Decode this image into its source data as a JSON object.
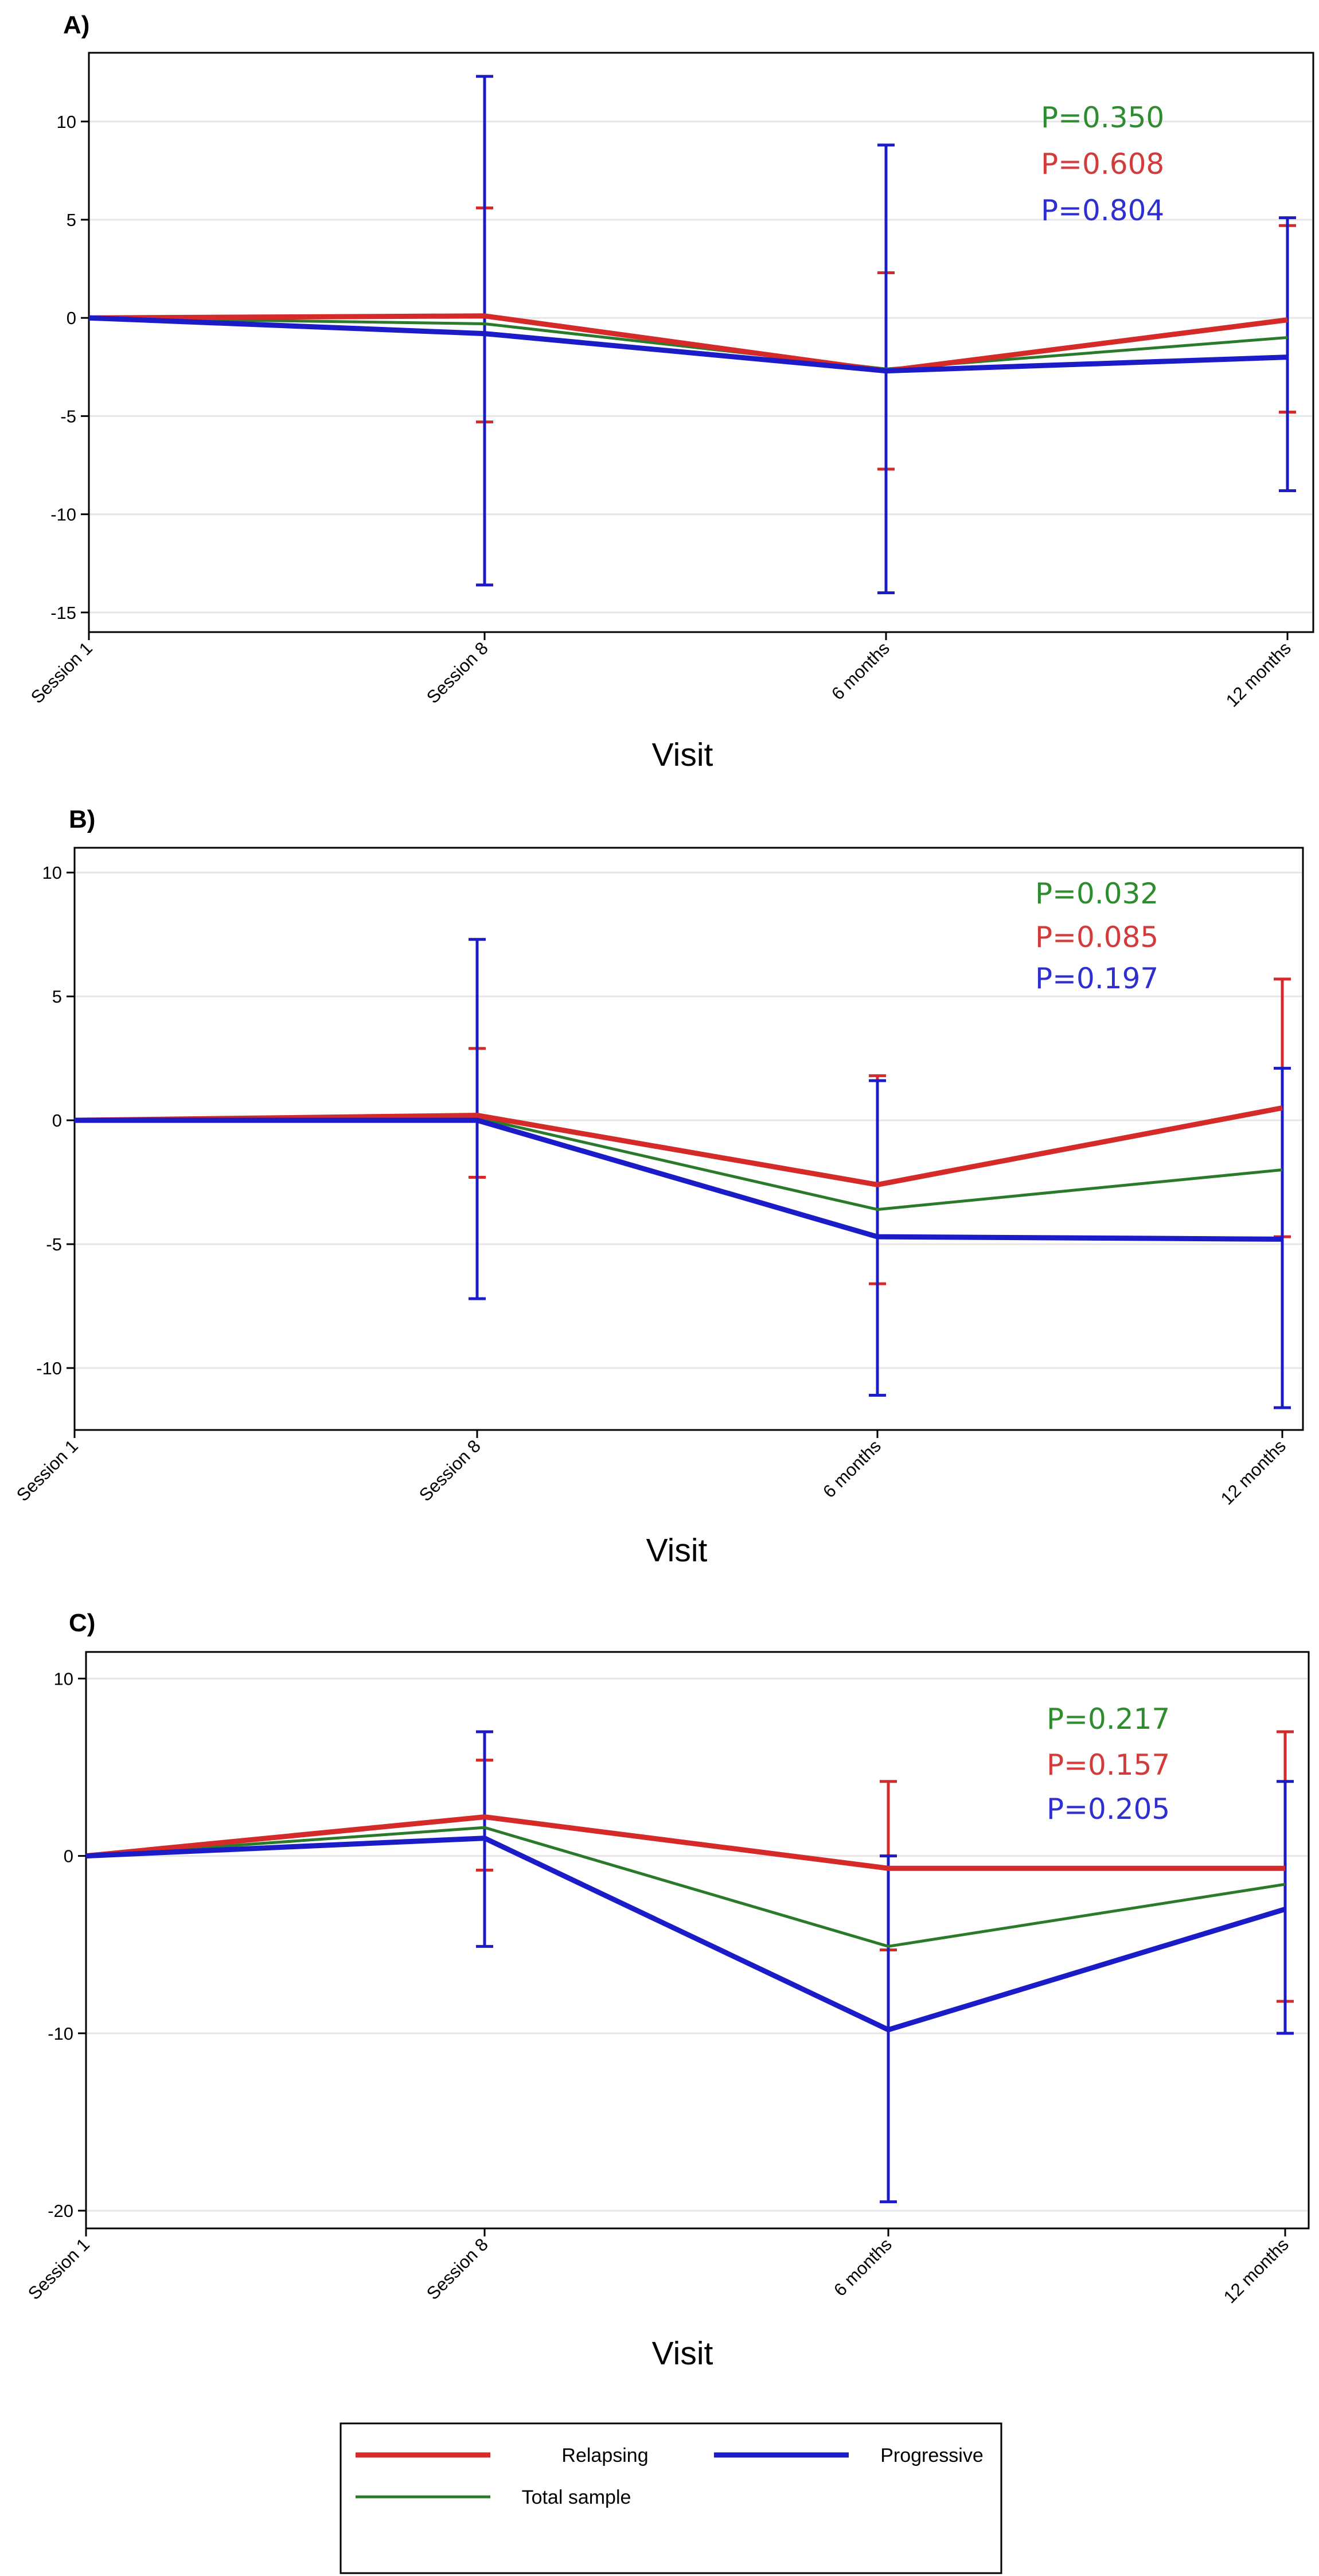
{
  "colors": {
    "relapsing": "#d42a2a",
    "progressive": "#1b1bc8",
    "total": "#2b7a2b",
    "relapsing_text": "#d33b3b",
    "progressive_text": "#2f2fd0",
    "total_text": "#2e8b2e",
    "grid": "#e6e6e6",
    "frame": "#000000"
  },
  "legend": {
    "relapsing": "Relapsing",
    "progressive": "Progressive",
    "total": "Total sample"
  },
  "chart_data": [
    {
      "type": "line",
      "panel_label": "A)",
      "xlabel": "Visit",
      "ylabel": "",
      "categories": [
        "Session 1",
        "Session 8",
        "6 months",
        "12 months"
      ],
      "ylim": [
        -16,
        13.5
      ],
      "yticks": [
        -15,
        -10,
        -5,
        0,
        5,
        10
      ],
      "grid": true,
      "series": [
        {
          "name": "Relapsing",
          "key": "relapsing",
          "values": [
            0,
            0.1,
            -2.7,
            -0.1
          ],
          "err_low": [
            null,
            -5.3,
            -7.7,
            -4.8
          ],
          "err_high": [
            null,
            5.6,
            2.3,
            4.7
          ]
        },
        {
          "name": "Progressive",
          "key": "progressive",
          "values": [
            0,
            -0.8,
            -2.7,
            -2.0
          ],
          "err_low": [
            null,
            -13.6,
            -14.0,
            -8.8
          ],
          "err_high": [
            null,
            12.3,
            8.8,
            5.1
          ]
        },
        {
          "name": "Total sample",
          "key": "total",
          "values": [
            0,
            -0.3,
            -2.6,
            -1.0
          ]
        }
      ],
      "pvalues": [
        {
          "key": "total",
          "text": "P=0.350"
        },
        {
          "key": "relapsing",
          "text": "P=0.608"
        },
        {
          "key": "progressive",
          "text": "P=0.804"
        }
      ]
    },
    {
      "type": "line",
      "panel_label": "B)",
      "xlabel": "Visit",
      "ylabel": "",
      "categories": [
        "Session 1",
        "Session 8",
        "6 months",
        "12 months"
      ],
      "ylim": [
        -12.5,
        11
      ],
      "yticks": [
        -10,
        -5,
        0,
        5,
        10
      ],
      "grid": true,
      "series": [
        {
          "name": "Relapsing",
          "key": "relapsing",
          "values": [
            0,
            0.2,
            -2.6,
            0.5
          ],
          "err_low": [
            null,
            -2.3,
            -6.6,
            -4.7
          ],
          "err_high": [
            null,
            2.9,
            1.8,
            5.7
          ]
        },
        {
          "name": "Progressive",
          "key": "progressive",
          "values": [
            0,
            0,
            -4.7,
            -4.8
          ],
          "err_low": [
            null,
            -7.2,
            -11.1,
            -11.6
          ],
          "err_high": [
            null,
            7.3,
            1.6,
            2.1
          ]
        },
        {
          "name": "Total sample",
          "key": "total",
          "values": [
            0,
            0.1,
            -3.6,
            -2.0
          ]
        }
      ],
      "pvalues": [
        {
          "key": "total",
          "text": "P=0.032"
        },
        {
          "key": "relapsing",
          "text": "P=0.085"
        },
        {
          "key": "progressive",
          "text": "P=0.197"
        }
      ]
    },
    {
      "type": "line",
      "panel_label": "C)",
      "xlabel": "Visit",
      "ylabel": "",
      "categories": [
        "Session 1",
        "Session 8",
        "6 months",
        "12 months"
      ],
      "ylim": [
        -21,
        11.5
      ],
      "yticks": [
        -20,
        -10,
        0,
        10
      ],
      "grid": true,
      "series": [
        {
          "name": "Relapsing",
          "key": "relapsing",
          "values": [
            0,
            2.2,
            -0.7,
            -0.7
          ],
          "err_low": [
            null,
            -0.8,
            -5.3,
            -8.2
          ],
          "err_high": [
            null,
            5.4,
            4.2,
            7.0
          ]
        },
        {
          "name": "Progressive",
          "key": "progressive",
          "values": [
            0,
            1.0,
            -9.8,
            -3.0
          ],
          "err_low": [
            null,
            -5.1,
            -19.5,
            -10.0
          ],
          "err_high": [
            null,
            7.0,
            0,
            4.2
          ]
        },
        {
          "name": "Total sample",
          "key": "total",
          "values": [
            0,
            1.6,
            -5.1,
            -1.6
          ]
        }
      ],
      "pvalues": [
        {
          "key": "total",
          "text": "P=0.217"
        },
        {
          "key": "relapsing",
          "text": "P=0.157"
        },
        {
          "key": "progressive",
          "text": "P=0.205"
        }
      ]
    }
  ]
}
